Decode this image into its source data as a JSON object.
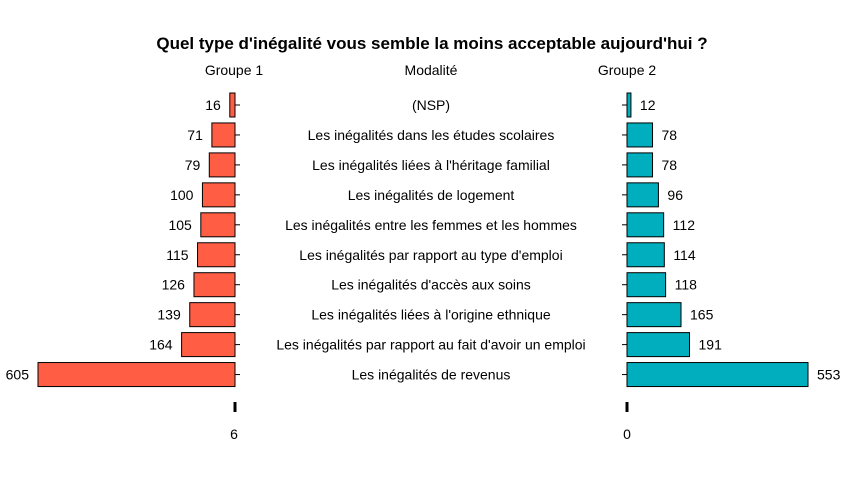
{
  "chart_data": {
    "type": "bar",
    "title": "Quel type d'inégalité vous semble la moins acceptable aujourd'hui ?",
    "header_left": "Groupe 1",
    "header_center": "Modalité",
    "header_right": "Groupe 2",
    "categories": [
      "(NSP)",
      "Les inégalités dans les études scolaires",
      "Les inégalités liées à l'héritage familial",
      "Les inégalités de logement",
      "Les inégalités entre les femmes et les hommes",
      "Les inégalités par rapport au type d'emploi",
      "Les inégalités d'accès aux soins",
      "Les inégalités liées à l'origine ethnique",
      "Les inégalités par rapport au fait d'avoir un emploi",
      "Les inégalités de revenus"
    ],
    "series": [
      {
        "name": "Groupe 1",
        "values": [
          16,
          71,
          79,
          100,
          105,
          115,
          126,
          139,
          164,
          605
        ],
        "color": "#FF5E45"
      },
      {
        "name": "Groupe 2",
        "values": [
          12,
          78,
          78,
          96,
          112,
          114,
          118,
          165,
          191,
          553
        ],
        "color": "#00AEBD"
      }
    ],
    "left_axis_tick": "6",
    "right_axis_tick": "0"
  }
}
